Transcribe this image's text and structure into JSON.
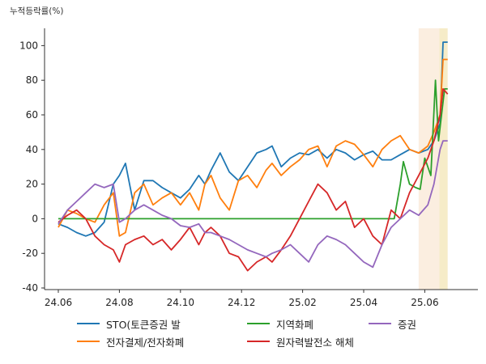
{
  "chart_data": {
    "type": "line",
    "title": "",
    "ylabel": "누적등락률(%)",
    "xlabel": "",
    "ylim": [
      -40,
      110
    ],
    "xlim": [
      0,
      24.9
    ],
    "yticks": [
      -40,
      -20,
      0,
      20,
      40,
      60,
      80,
      100
    ],
    "xticks": [
      {
        "x": 0,
        "label": "24.06"
      },
      {
        "x": 2,
        "label": "24.08"
      },
      {
        "x": 4,
        "label": "24.10"
      },
      {
        "x": 6,
        "label": "24.12"
      },
      {
        "x": 8,
        "label": "25.02"
      },
      {
        "x": 10,
        "label": "25.04"
      },
      {
        "x": 12,
        "label": "25.06"
      }
    ],
    "grid": false,
    "legend_position": "bottom",
    "highlight_bands": [
      {
        "from": 11.8,
        "to": 12.48,
        "color": "#fbeee0"
      },
      {
        "from": 12.48,
        "to": 12.75,
        "color": "#f6ecc8"
      }
    ],
    "series": [
      {
        "name": "STO(토큰증권 발",
        "color": "#1f77b4",
        "points": [
          [
            0,
            -3
          ],
          [
            0.3,
            -5
          ],
          [
            0.6,
            -8
          ],
          [
            0.9,
            -10
          ],
          [
            1.2,
            -8
          ],
          [
            1.5,
            -2
          ],
          [
            1.8,
            20
          ],
          [
            2.0,
            25
          ],
          [
            2.2,
            32
          ],
          [
            2.5,
            5
          ],
          [
            2.8,
            22
          ],
          [
            3.1,
            22
          ],
          [
            3.4,
            18
          ],
          [
            3.7,
            15
          ],
          [
            4.0,
            12
          ],
          [
            4.3,
            17
          ],
          [
            4.6,
            25
          ],
          [
            4.8,
            20
          ],
          [
            5.0,
            28
          ],
          [
            5.3,
            38
          ],
          [
            5.6,
            27
          ],
          [
            5.9,
            22
          ],
          [
            6.2,
            30
          ],
          [
            6.5,
            38
          ],
          [
            6.8,
            40
          ],
          [
            7.0,
            42
          ],
          [
            7.3,
            30
          ],
          [
            7.6,
            35
          ],
          [
            7.9,
            38
          ],
          [
            8.2,
            37
          ],
          [
            8.5,
            40
          ],
          [
            8.8,
            35
          ],
          [
            9.1,
            40
          ],
          [
            9.4,
            38
          ],
          [
            9.7,
            34
          ],
          [
            10.0,
            37
          ],
          [
            10.3,
            39
          ],
          [
            10.6,
            34
          ],
          [
            10.9,
            34
          ],
          [
            11.2,
            37
          ],
          [
            11.5,
            40
          ],
          [
            11.8,
            38
          ],
          [
            12.1,
            40
          ],
          [
            12.3,
            45
          ],
          [
            12.5,
            55
          ],
          [
            12.6,
            102
          ],
          [
            12.75,
            102
          ]
        ]
      },
      {
        "name": "전자결제/전자화폐",
        "color": "#ff7f0e",
        "points": [
          [
            0,
            -5
          ],
          [
            0.3,
            5
          ],
          [
            0.6,
            3
          ],
          [
            0.9,
            0
          ],
          [
            1.2,
            -2
          ],
          [
            1.5,
            8
          ],
          [
            1.8,
            15
          ],
          [
            2.0,
            -10
          ],
          [
            2.2,
            -8
          ],
          [
            2.5,
            15
          ],
          [
            2.8,
            20
          ],
          [
            3.1,
            8
          ],
          [
            3.4,
            12
          ],
          [
            3.7,
            15
          ],
          [
            4.0,
            8
          ],
          [
            4.3,
            15
          ],
          [
            4.6,
            5
          ],
          [
            4.8,
            20
          ],
          [
            5.0,
            25
          ],
          [
            5.3,
            12
          ],
          [
            5.6,
            5
          ],
          [
            5.9,
            22
          ],
          [
            6.2,
            25
          ],
          [
            6.5,
            18
          ],
          [
            6.8,
            28
          ],
          [
            7.0,
            32
          ],
          [
            7.3,
            25
          ],
          [
            7.6,
            30
          ],
          [
            7.9,
            34
          ],
          [
            8.2,
            40
          ],
          [
            8.5,
            42
          ],
          [
            8.8,
            30
          ],
          [
            9.1,
            42
          ],
          [
            9.4,
            45
          ],
          [
            9.7,
            43
          ],
          [
            10.0,
            37
          ],
          [
            10.3,
            30
          ],
          [
            10.6,
            40
          ],
          [
            10.9,
            45
          ],
          [
            11.2,
            48
          ],
          [
            11.5,
            40
          ],
          [
            11.8,
            38
          ],
          [
            12.1,
            42
          ],
          [
            12.3,
            50
          ],
          [
            12.5,
            60
          ],
          [
            12.6,
            92
          ],
          [
            12.75,
            92
          ]
        ]
      },
      {
        "name": "지역화폐",
        "color": "#2ca02c",
        "points": [
          [
            0,
            0
          ],
          [
            1,
            0
          ],
          [
            2,
            0
          ],
          [
            3,
            0
          ],
          [
            4,
            0
          ],
          [
            5,
            0
          ],
          [
            6,
            0
          ],
          [
            7,
            0
          ],
          [
            8,
            0
          ],
          [
            9,
            0
          ],
          [
            10,
            0
          ],
          [
            11.0,
            0
          ],
          [
            11.2,
            20
          ],
          [
            11.3,
            33
          ],
          [
            11.5,
            20
          ],
          [
            11.7,
            18
          ],
          [
            11.85,
            17
          ],
          [
            12.0,
            35
          ],
          [
            12.2,
            25
          ],
          [
            12.35,
            80
          ],
          [
            12.45,
            45
          ],
          [
            12.55,
            60
          ],
          [
            12.65,
            75
          ],
          [
            12.75,
            75
          ]
        ]
      },
      {
        "name": "원자력발전소 해체",
        "color": "#d62728",
        "points": [
          [
            0,
            -2
          ],
          [
            0.3,
            2
          ],
          [
            0.6,
            5
          ],
          [
            0.9,
            0
          ],
          [
            1.2,
            -10
          ],
          [
            1.5,
            -15
          ],
          [
            1.8,
            -18
          ],
          [
            2.0,
            -25
          ],
          [
            2.2,
            -15
          ],
          [
            2.5,
            -12
          ],
          [
            2.8,
            -10
          ],
          [
            3.1,
            -15
          ],
          [
            3.4,
            -12
          ],
          [
            3.7,
            -18
          ],
          [
            4.0,
            -12
          ],
          [
            4.3,
            -5
          ],
          [
            4.6,
            -15
          ],
          [
            4.8,
            -8
          ],
          [
            5.0,
            -5
          ],
          [
            5.3,
            -10
          ],
          [
            5.6,
            -20
          ],
          [
            5.9,
            -22
          ],
          [
            6.2,
            -30
          ],
          [
            6.5,
            -25
          ],
          [
            6.8,
            -22
          ],
          [
            7.0,
            -25
          ],
          [
            7.3,
            -18
          ],
          [
            7.6,
            -10
          ],
          [
            7.9,
            0
          ],
          [
            8.2,
            10
          ],
          [
            8.5,
            20
          ],
          [
            8.8,
            15
          ],
          [
            9.1,
            5
          ],
          [
            9.4,
            10
          ],
          [
            9.7,
            -5
          ],
          [
            10.0,
            0
          ],
          [
            10.3,
            -10
          ],
          [
            10.6,
            -15
          ],
          [
            10.9,
            5
          ],
          [
            11.2,
            0
          ],
          [
            11.5,
            15
          ],
          [
            11.8,
            25
          ],
          [
            12.1,
            35
          ],
          [
            12.3,
            45
          ],
          [
            12.5,
            60
          ],
          [
            12.6,
            75
          ],
          [
            12.75,
            72
          ]
        ]
      },
      {
        "name": "증권",
        "color": "#9467bd",
        "points": [
          [
            0,
            -3
          ],
          [
            0.3,
            5
          ],
          [
            0.6,
            10
          ],
          [
            0.9,
            15
          ],
          [
            1.2,
            20
          ],
          [
            1.5,
            18
          ],
          [
            1.8,
            20
          ],
          [
            2.0,
            -2
          ],
          [
            2.2,
            0
          ],
          [
            2.5,
            5
          ],
          [
            2.8,
            8
          ],
          [
            3.1,
            5
          ],
          [
            3.4,
            2
          ],
          [
            3.7,
            0
          ],
          [
            4.0,
            -4
          ],
          [
            4.3,
            -5
          ],
          [
            4.6,
            -3
          ],
          [
            4.8,
            -8
          ],
          [
            5.0,
            -8
          ],
          [
            5.3,
            -10
          ],
          [
            5.6,
            -12
          ],
          [
            5.9,
            -15
          ],
          [
            6.2,
            -18
          ],
          [
            6.5,
            -20
          ],
          [
            6.8,
            -22
          ],
          [
            7.0,
            -20
          ],
          [
            7.3,
            -18
          ],
          [
            7.6,
            -15
          ],
          [
            7.9,
            -20
          ],
          [
            8.2,
            -25
          ],
          [
            8.5,
            -15
          ],
          [
            8.8,
            -10
          ],
          [
            9.1,
            -12
          ],
          [
            9.4,
            -15
          ],
          [
            9.7,
            -20
          ],
          [
            10.0,
            -25
          ],
          [
            10.3,
            -28
          ],
          [
            10.6,
            -15
          ],
          [
            10.9,
            -5
          ],
          [
            11.2,
            0
          ],
          [
            11.5,
            5
          ],
          [
            11.8,
            2
          ],
          [
            12.1,
            8
          ],
          [
            12.3,
            20
          ],
          [
            12.5,
            40
          ],
          [
            12.6,
            45
          ],
          [
            12.75,
            45
          ]
        ]
      }
    ]
  }
}
